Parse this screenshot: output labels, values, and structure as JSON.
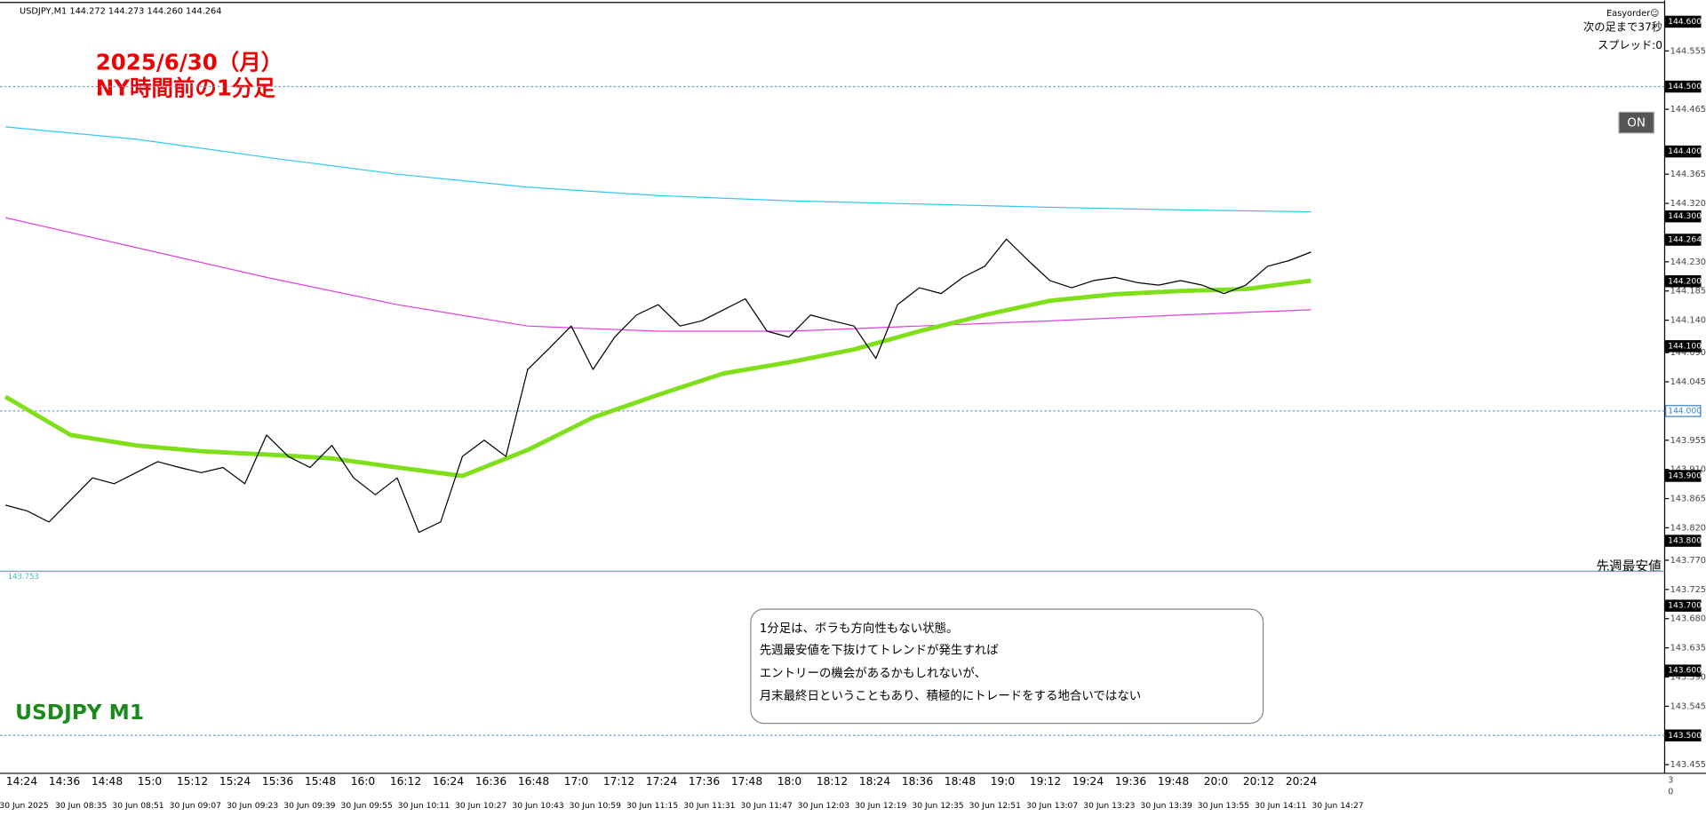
{
  "chart_data": {
    "type": "line",
    "header": "USDJPY,M1  144.272 144.273 144.260 144.264",
    "title_lines": [
      "2025/6/30（月）",
      "NY時間前の1分足"
    ],
    "watermark": "USDJPY M1",
    "note_lines": [
      "1分足は、ボラも方向性もない状態。",
      "先週最安値を下抜けてトレンドが発生すれば",
      "エントリーの機会があるかもしれないが、",
      "月末最終日ということもあり、積極的にトレードをする地合いではない"
    ],
    "panel": {
      "plugin": "Easyorder☺",
      "countdown": "次の足まで37秒",
      "spread": "スプレッド:0",
      "button": "ON"
    },
    "last_week_low": {
      "name": "先週最安値",
      "value": 143.753
    },
    "ylim": [
      143.445,
      144.628
    ],
    "yticks": [
      144.555,
      144.465,
      144.365,
      {
        "value": 144.32,
        "label": "144.320"
      },
      {
        "value": 144.23,
        "label": "144.230"
      },
      144.185,
      {
        "value": 144.14,
        "label": "144.140"
      },
      {
        "value": 144.09,
        "label": "144.090"
      },
      144.045,
      143.955,
      {
        "value": 143.91,
        "label": "143.910"
      },
      143.865,
      {
        "value": 143.82,
        "label": "143.820"
      },
      {
        "value": 143.77,
        "label": "143.770"
      },
      143.725,
      {
        "value": 143.68,
        "label": "143.680"
      },
      143.635,
      {
        "value": 143.59,
        "label": "143.590"
      },
      143.545,
      143.455
    ],
    "price_levels": [
      {
        "value": 144.6,
        "label": "144.600"
      },
      {
        "value": 144.5,
        "label": "144.500"
      },
      {
        "value": 144.4,
        "label": "144.400"
      },
      {
        "value": 144.3,
        "label": "144.300"
      },
      144.264,
      {
        "value": 144.2,
        "label": "144.200"
      },
      {
        "value": 144.1,
        "label": "144.100"
      },
      {
        "value": 144.0,
        "label": "144.000"
      },
      {
        "value": 143.9,
        "label": "143.900"
      },
      {
        "value": 143.8,
        "label": "143.800"
      },
      {
        "value": 143.7,
        "label": "143.700"
      },
      {
        "value": 143.6,
        "label": "143.600"
      },
      {
        "value": 143.5,
        "label": "143.500"
      }
    ],
    "dotted_levels": [
      144.5,
      144.0,
      143.5
    ],
    "subwindow_labels": [
      "3",
      "0"
    ],
    "time_labels": [
      "14:24",
      "14:36",
      "14:48",
      "15:0",
      "15:12",
      "15:24",
      "15:36",
      "15:48",
      "16:0",
      "16:12",
      "16:24",
      "16:36",
      "16:48",
      "17:0",
      "17:12",
      "17:24",
      "17:36",
      "17:48",
      "18:0",
      "18:12",
      "18:24",
      "18:36",
      "18:48",
      "19:0",
      "19:12",
      "19:24",
      "19:36",
      "19:48",
      "20:0",
      "20:12",
      "20:24"
    ],
    "date_labels": [
      "30 Jun 2025",
      "30 Jun 08:35",
      "30 Jun 08:51",
      "30 Jun 09:07",
      "30 Jun 09:23",
      "30 Jun 09:39",
      "30 Jun 09:55",
      "30 Jun 10:11",
      "30 Jun 10:27",
      "30 Jun 10:43",
      "30 Jun 10:59",
      "30 Jun 11:15",
      "30 Jun 11:31",
      "30 Jun 11:47",
      "30 Jun 12:03",
      "30 Jun 12:19",
      "30 Jun 12:35",
      "30 Jun 12:51",
      "30 Jun 13:07",
      "30 Jun 13:23",
      "30 Jun 13:39",
      "30 Jun 13:55",
      "30 Jun 14:11",
      "30 Jun 14:27"
    ],
    "series": [
      {
        "color": "#000000",
        "values": [
          143.855,
          143.846,
          143.829,
          143.863,
          143.897,
          143.888,
          143.905,
          143.922,
          143.913,
          143.905,
          143.913,
          143.888,
          143.963,
          143.93,
          143.913,
          143.947,
          143.897,
          143.871,
          143.897,
          143.813,
          143.829,
          143.93,
          143.955,
          143.93,
          144.064,
          144.097,
          144.131,
          144.064,
          144.114,
          144.148,
          144.164,
          144.131,
          144.139,
          144.156,
          144.173,
          144.123,
          144.114,
          144.148,
          144.139,
          144.131,
          144.081,
          144.164,
          144.19,
          144.181,
          144.206,
          144.223,
          144.265,
          144.232,
          144.201,
          144.19,
          144.201,
          144.206,
          144.198,
          144.194,
          144.201,
          144.194,
          144.181,
          144.194,
          144.223,
          144.232,
          144.245
        ]
      },
      {
        "color": "#7fe01a",
        "values": [
          144.022,
          143.963,
          143.947,
          143.938,
          143.933,
          143.927,
          143.913,
          143.9,
          143.94,
          143.99,
          144.025,
          144.058,
          144.075,
          144.095,
          144.123,
          144.148,
          144.17,
          144.18,
          144.185,
          144.188,
          144.201
        ]
      },
      {
        "color": "#33c8f0",
        "values": [
          144.438,
          144.419,
          144.391,
          144.365,
          144.345,
          144.332,
          144.324,
          144.319,
          144.314,
          144.31,
          144.307
        ]
      },
      {
        "color": "#e040e0",
        "values": [
          144.298,
          144.252,
          144.206,
          144.164,
          144.131,
          144.123,
          144.123,
          144.131,
          144.139,
          144.148,
          144.156
        ]
      }
    ]
  }
}
